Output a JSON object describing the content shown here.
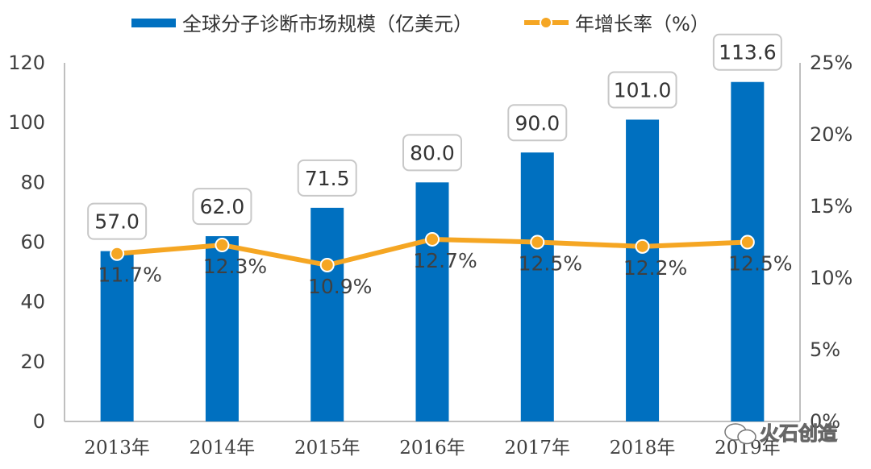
{
  "chart_data": {
    "type": "bar",
    "categories": [
      "2013年",
      "2014年",
      "2015年",
      "2016年",
      "2017年",
      "2018年",
      "2019年"
    ],
    "series": [
      {
        "name": "全球分子诊断市场规模（亿美元）",
        "type": "bar",
        "axis": "left",
        "values": [
          57.0,
          62.0,
          71.5,
          80.0,
          90.0,
          101.0,
          113.6
        ],
        "labels": [
          "57.0",
          "62.0",
          "71.5",
          "80.0",
          "90.0",
          "101.0",
          "113.6"
        ],
        "color": "#0070C0"
      },
      {
        "name": "年增长率（%）",
        "type": "line",
        "axis": "right",
        "values": [
          11.7,
          12.3,
          10.9,
          12.7,
          12.5,
          12.2,
          12.5
        ],
        "labels": [
          "11.7%",
          "12.3%",
          "10.9%",
          "12.7%",
          "12.5%",
          "12.2%",
          "12.5%"
        ],
        "color": "#F5A623"
      }
    ],
    "y_left": {
      "min": 0,
      "max": 120,
      "ticks": [
        "0",
        "20",
        "40",
        "60",
        "80",
        "100",
        "120"
      ]
    },
    "y_right": {
      "min": 0,
      "max": 25,
      "ticks": [
        "0%",
        "5%",
        "10%",
        "15%",
        "20%",
        "25%"
      ]
    },
    "legend_position": "top-center",
    "grid": false
  },
  "watermark": {
    "text": "火石创造",
    "icon": "wechat-icon"
  }
}
